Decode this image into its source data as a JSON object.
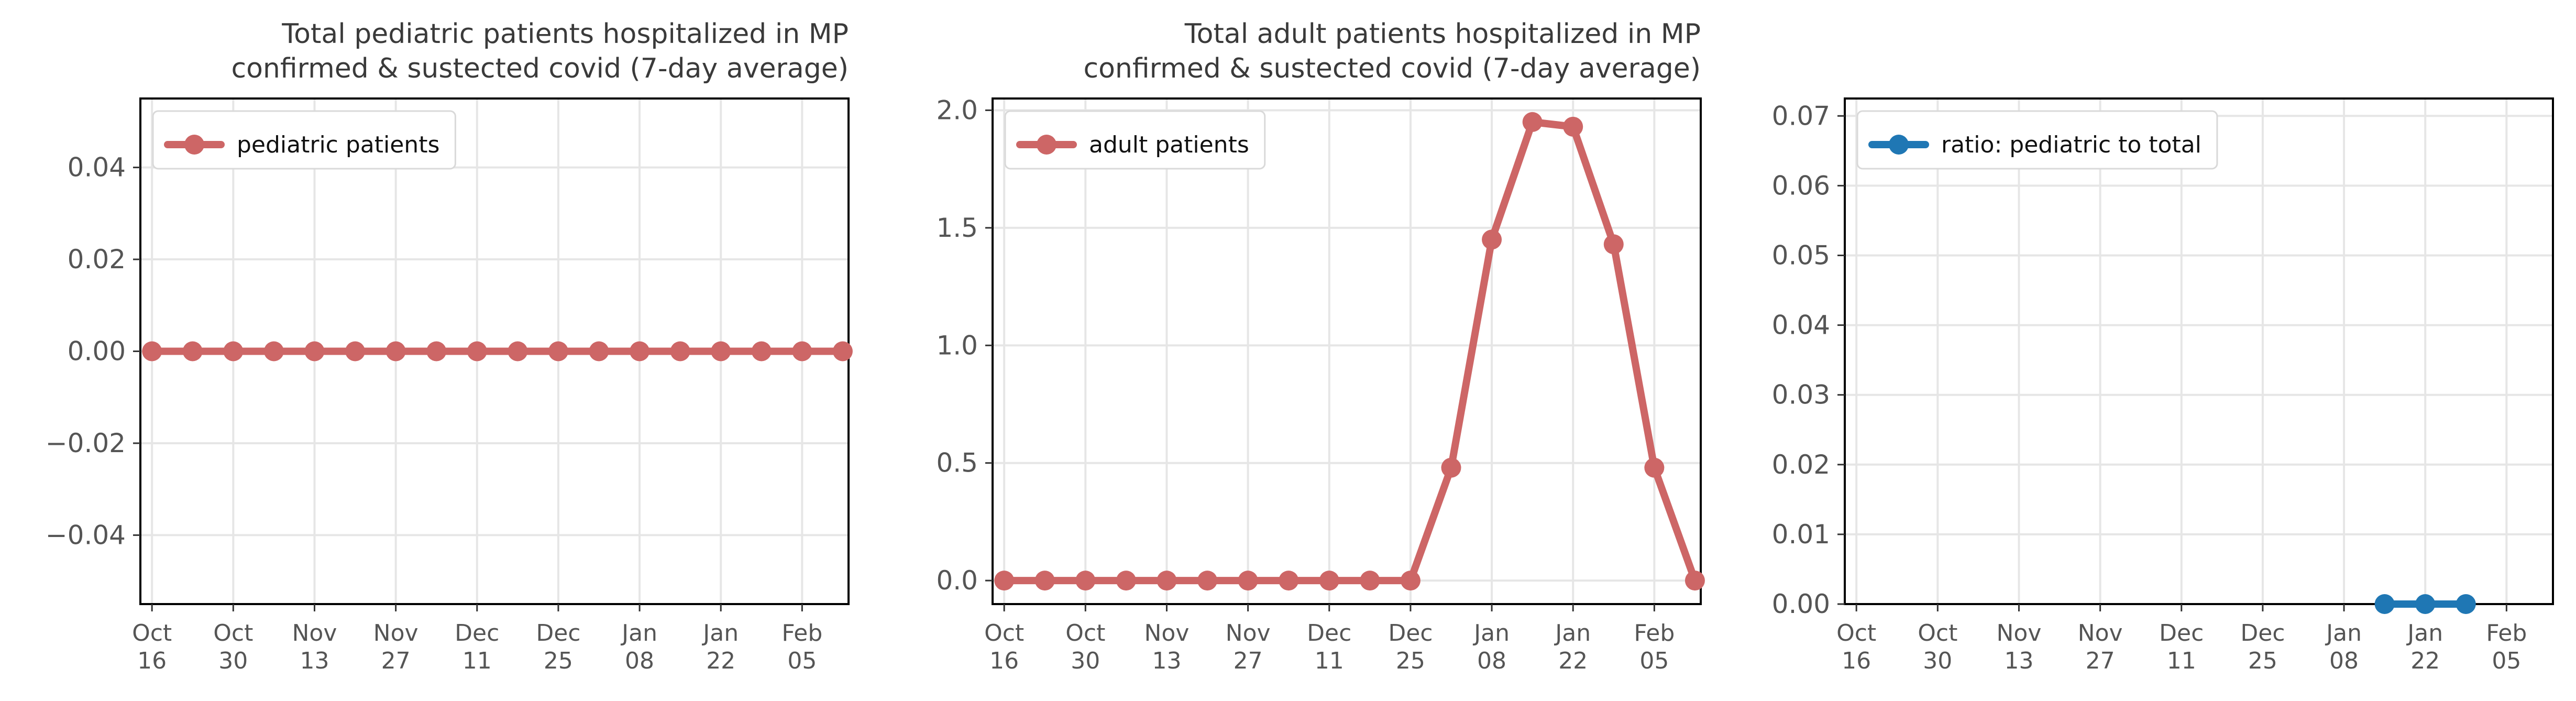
{
  "colors": {
    "red_series": "#cd6666",
    "blue_series": "#1f77b4",
    "grid": "#e6e6e6",
    "axis": "#000000"
  },
  "chart_data": [
    {
      "type": "line",
      "title": "Total pediatric patients hospitalized in MP\nconfirmed & sustected covid (7-day average)",
      "xlabel": "",
      "ylabel": "",
      "x": [
        "2022-10-16",
        "2022-10-23",
        "2022-10-30",
        "2022-11-06",
        "2022-11-13",
        "2022-11-20",
        "2022-11-27",
        "2022-12-04",
        "2022-12-11",
        "2022-12-18",
        "2022-12-25",
        "2023-01-01",
        "2023-01-08",
        "2023-01-15",
        "2023-01-22",
        "2023-01-29",
        "2023-02-05",
        "2023-02-12"
      ],
      "series": [
        {
          "name": "pediatric patients",
          "color": "#cd6666",
          "values": [
            0,
            0,
            0,
            0,
            0,
            0,
            0,
            0,
            0,
            0,
            0,
            0,
            0,
            0,
            0,
            0,
            0,
            0
          ]
        }
      ],
      "ylim": [
        -0.055,
        0.055
      ],
      "yticks": [
        -0.04,
        -0.02,
        0.0,
        0.02,
        0.04
      ],
      "ytick_labels": [
        "−0.04",
        "−0.02",
        "0.00",
        "0.02",
        "0.04"
      ],
      "xlim": [
        "2022-10-14",
        "2023-02-13"
      ],
      "xticks": [
        "2022-10-16",
        "2022-10-30",
        "2022-11-13",
        "2022-11-27",
        "2022-12-11",
        "2022-12-25",
        "2023-01-08",
        "2023-01-22",
        "2023-02-05"
      ],
      "xtick_labels": [
        [
          "Oct",
          "16"
        ],
        [
          "Oct",
          "30"
        ],
        [
          "Nov",
          "13"
        ],
        [
          "Nov",
          "27"
        ],
        [
          "Dec",
          "11"
        ],
        [
          "Dec",
          "25"
        ],
        [
          "Jan",
          "08"
        ],
        [
          "Jan",
          "22"
        ],
        [
          "Feb",
          "05"
        ]
      ],
      "grid": true,
      "legend": "top-left"
    },
    {
      "type": "line",
      "title": "Total adult patients hospitalized in MP\nconfirmed & sustected covid (7-day average)",
      "xlabel": "",
      "ylabel": "",
      "x": [
        "2022-10-16",
        "2022-10-23",
        "2022-10-30",
        "2022-11-06",
        "2022-11-13",
        "2022-11-20",
        "2022-11-27",
        "2022-12-04",
        "2022-12-11",
        "2022-12-18",
        "2022-12-25",
        "2023-01-01",
        "2023-01-08",
        "2023-01-15",
        "2023-01-22",
        "2023-01-29",
        "2023-02-05",
        "2023-02-12"
      ],
      "series": [
        {
          "name": "adult patients",
          "color": "#cd6666",
          "values": [
            0,
            0,
            0,
            0,
            0,
            0,
            0,
            0,
            0,
            0,
            0,
            0.48,
            1.45,
            1.95,
            1.93,
            1.43,
            0.48,
            0
          ]
        }
      ],
      "ylim": [
        -0.1,
        2.05
      ],
      "yticks": [
        0.0,
        0.5,
        1.0,
        1.5,
        2.0
      ],
      "ytick_labels": [
        "0.0",
        "0.5",
        "1.0",
        "1.5",
        "2.0"
      ],
      "xlim": [
        "2022-10-14",
        "2023-02-13"
      ],
      "xticks": [
        "2022-10-16",
        "2022-10-30",
        "2022-11-13",
        "2022-11-27",
        "2022-12-11",
        "2022-12-25",
        "2023-01-08",
        "2023-01-22",
        "2023-02-05"
      ],
      "xtick_labels": [
        [
          "Oct",
          "16"
        ],
        [
          "Oct",
          "30"
        ],
        [
          "Nov",
          "13"
        ],
        [
          "Nov",
          "27"
        ],
        [
          "Dec",
          "11"
        ],
        [
          "Dec",
          "25"
        ],
        [
          "Jan",
          "08"
        ],
        [
          "Jan",
          "22"
        ],
        [
          "Feb",
          "05"
        ]
      ],
      "grid": true,
      "legend": "top-left"
    },
    {
      "type": "line",
      "title": "",
      "xlabel": "",
      "ylabel": "",
      "x": [
        "2023-01-15",
        "2023-01-22",
        "2023-01-29"
      ],
      "series": [
        {
          "name": "ratio: pediatric to total",
          "color": "#1f77b4",
          "values": [
            0,
            0,
            0
          ]
        }
      ],
      "ylim": [
        0,
        0.0725
      ],
      "yticks": [
        0.0,
        0.01,
        0.02,
        0.03,
        0.04,
        0.05,
        0.06,
        0.07
      ],
      "ytick_labels": [
        "0.00",
        "0.01",
        "0.02",
        "0.03",
        "0.04",
        "0.05",
        "0.06",
        "0.07"
      ],
      "xlim": [
        "2022-10-14",
        "2023-02-13"
      ],
      "xticks": [
        "2022-10-16",
        "2022-10-30",
        "2022-11-13",
        "2022-11-27",
        "2022-12-11",
        "2022-12-25",
        "2023-01-08",
        "2023-01-22",
        "2023-02-05"
      ],
      "xtick_labels": [
        [
          "Oct",
          "16"
        ],
        [
          "Oct",
          "30"
        ],
        [
          "Nov",
          "13"
        ],
        [
          "Nov",
          "27"
        ],
        [
          "Dec",
          "11"
        ],
        [
          "Dec",
          "25"
        ],
        [
          "Jan",
          "08"
        ],
        [
          "Jan",
          "22"
        ],
        [
          "Feb",
          "05"
        ]
      ],
      "grid": true,
      "legend": "top-left"
    }
  ]
}
